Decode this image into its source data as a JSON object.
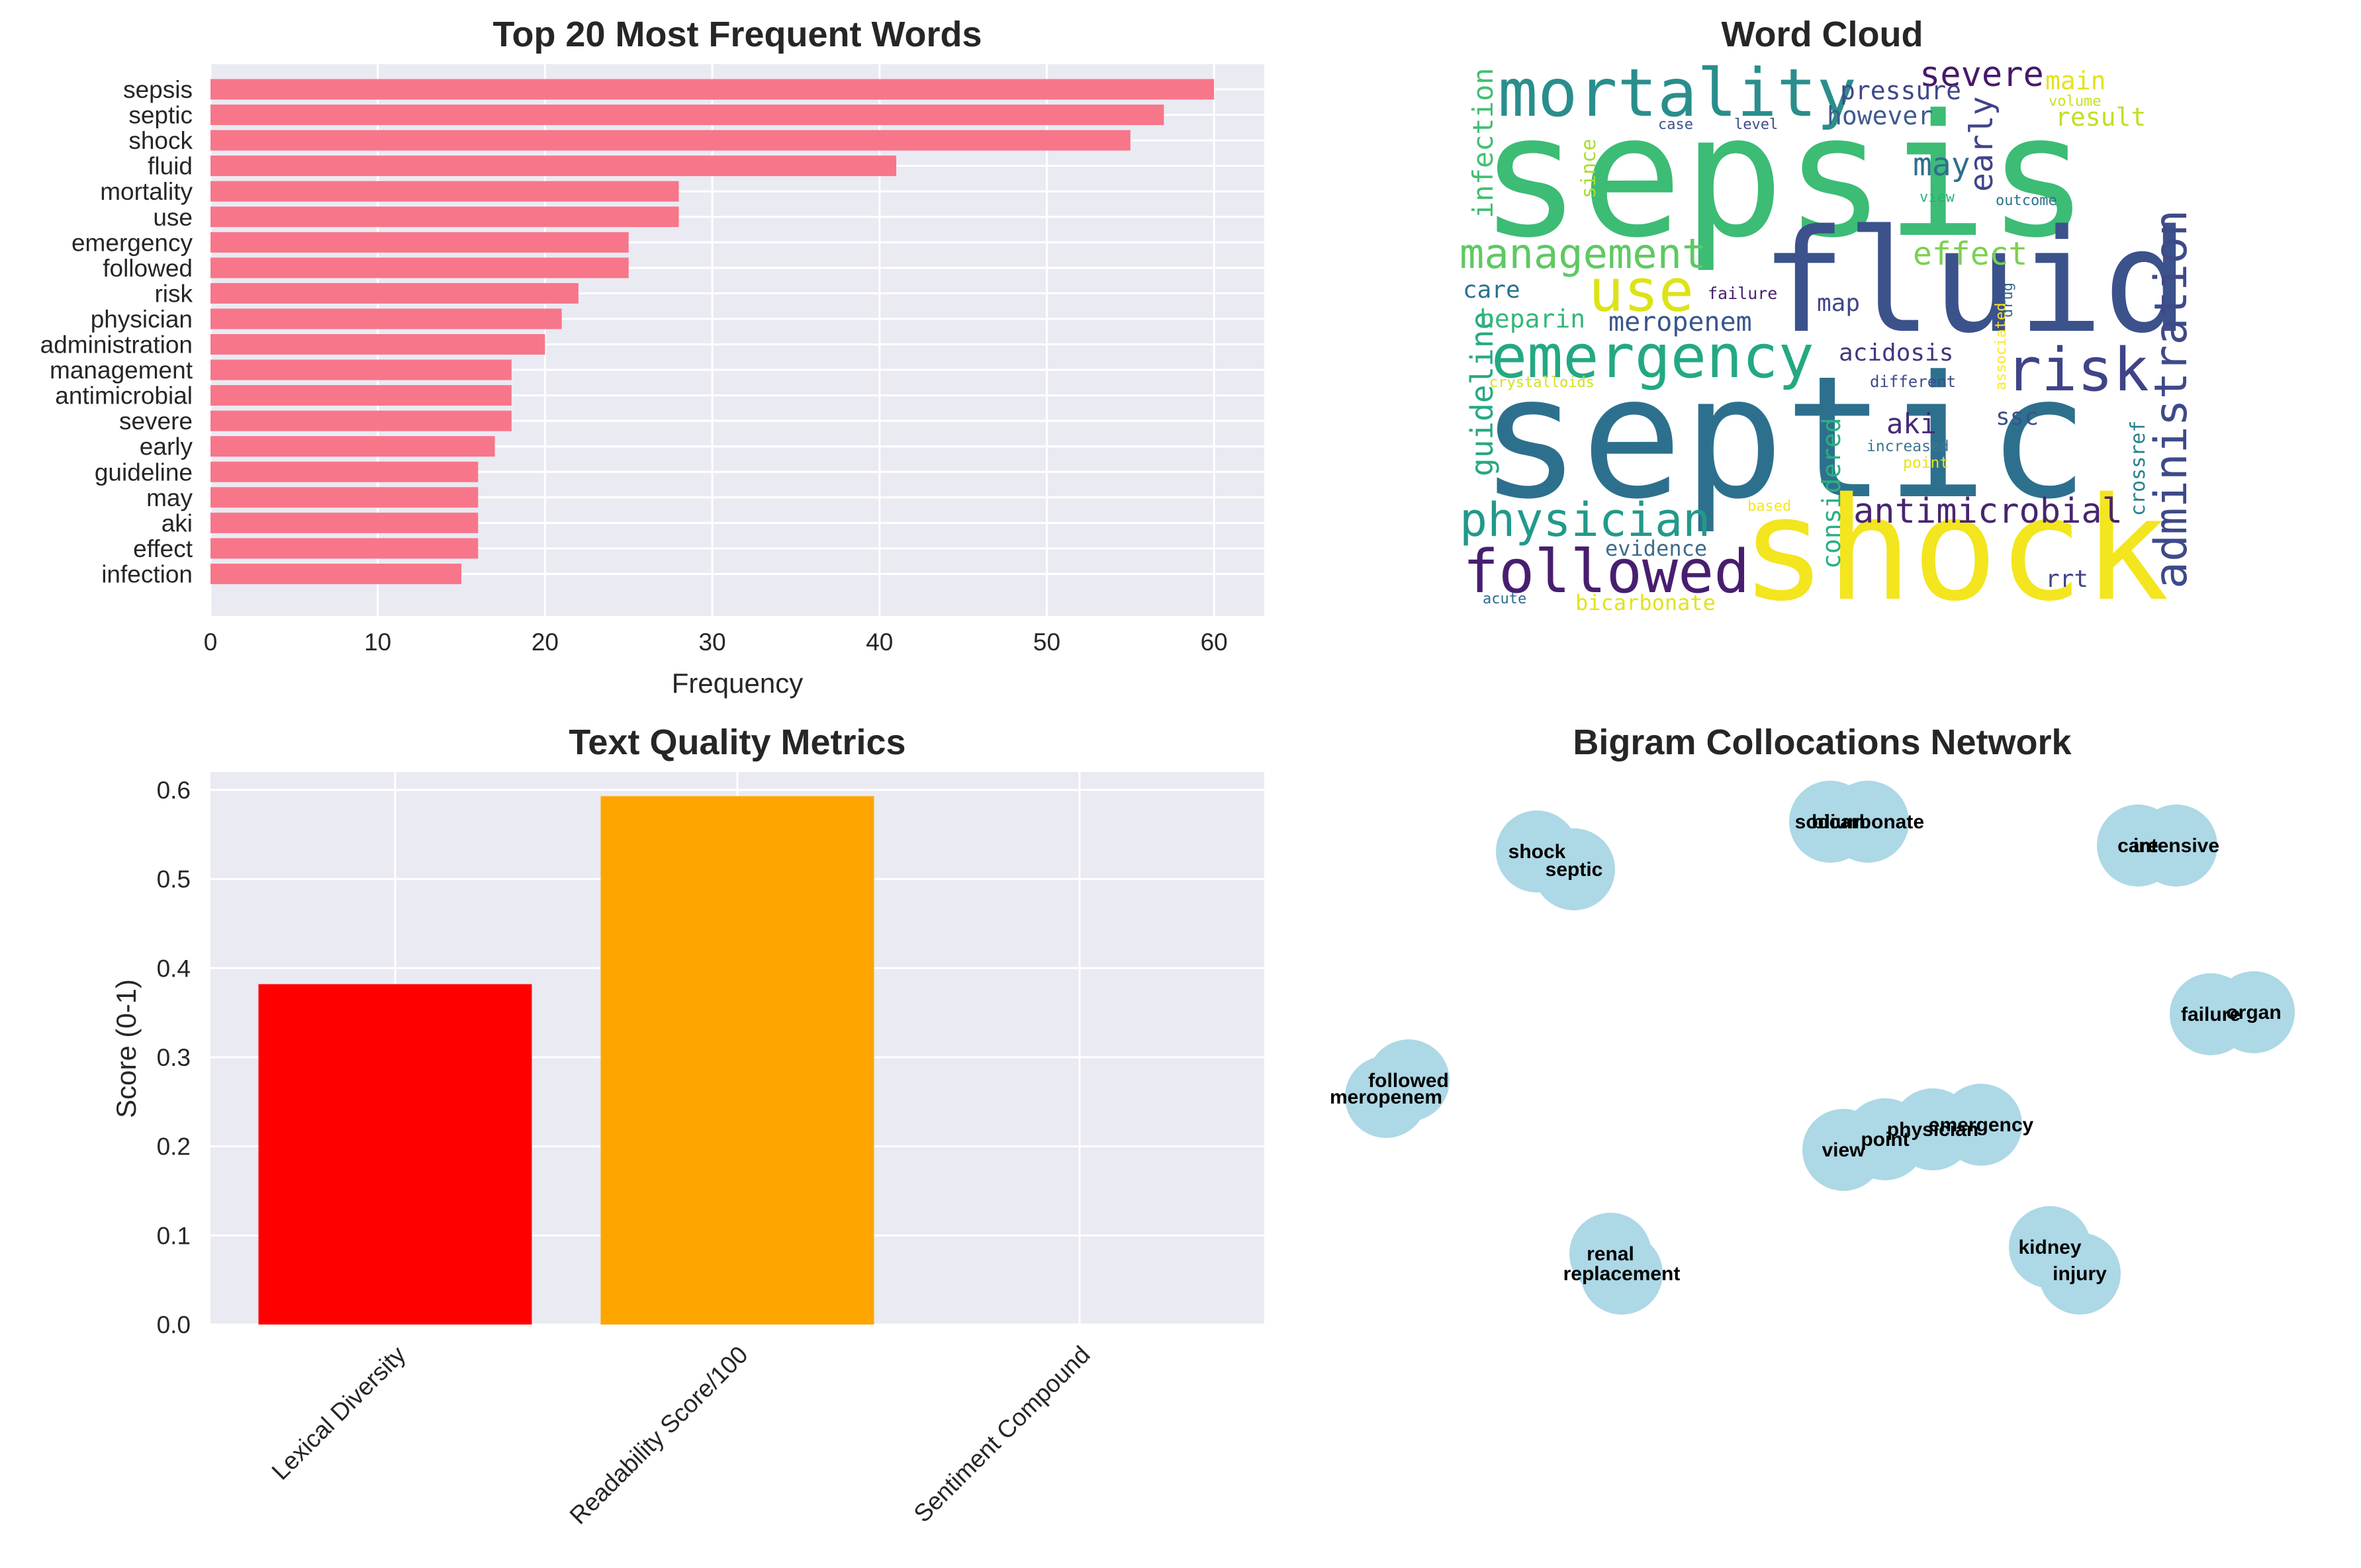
{
  "chart_data": [
    {
      "type": "bar",
      "orientation": "horizontal",
      "title": "Top 20 Most Frequent Words",
      "xlabel": "Frequency",
      "ylabel": "",
      "xlim": [
        0,
        63
      ],
      "xticks": [
        0,
        10,
        20,
        30,
        40,
        50,
        60
      ],
      "grid": true,
      "color": "#f7768a",
      "categories": [
        "sepsis",
        "septic",
        "shock",
        "fluid",
        "mortality",
        "use",
        "emergency",
        "followed",
        "risk",
        "physician",
        "administration",
        "management",
        "antimicrobial",
        "severe",
        "early",
        "guideline",
        "may",
        "aki",
        "effect",
        "infection"
      ],
      "values": [
        60,
        57,
        55,
        41,
        28,
        28,
        25,
        25,
        22,
        21,
        20,
        18,
        18,
        18,
        17,
        16,
        16,
        16,
        16,
        15
      ]
    },
    {
      "type": "wordcloud",
      "title": "Word Cloud",
      "words": [
        {
          "text": "sepsis",
          "color": "#3cbc75"
        },
        {
          "text": "septic",
          "color": "#2d708e"
        },
        {
          "text": "shock",
          "color": "#f3e51e"
        },
        {
          "text": "fluid",
          "color": "#3b528b"
        },
        {
          "text": "mortality",
          "color": "#2a8e8c"
        },
        {
          "text": "emergency",
          "color": "#24a884"
        },
        {
          "text": "followed",
          "color": "#481e6f"
        },
        {
          "text": "use",
          "color": "#dde318"
        },
        {
          "text": "risk",
          "color": "#404387"
        },
        {
          "text": "physician",
          "color": "#22998a"
        },
        {
          "text": "management",
          "color": "#5ec962"
        },
        {
          "text": "administration",
          "color": "#3e4a89"
        },
        {
          "text": "antimicrobial",
          "color": "#48256e"
        },
        {
          "text": "severe",
          "color": "#48186a"
        },
        {
          "text": "early",
          "color": "#414487"
        },
        {
          "text": "guideline",
          "color": "#26a883"
        },
        {
          "text": "infection",
          "color": "#43bf71"
        },
        {
          "text": "effect",
          "color": "#7ad151"
        },
        {
          "text": "may",
          "color": "#2e6f8e"
        },
        {
          "text": "meropenem",
          "color": "#39568c"
        },
        {
          "text": "heparin",
          "color": "#35b779"
        },
        {
          "text": "pressure",
          "color": "#3f4889"
        },
        {
          "text": "however",
          "color": "#3e5b8d"
        },
        {
          "text": "result",
          "color": "#c2df23"
        },
        {
          "text": "main",
          "color": "#e2e419"
        },
        {
          "text": "care",
          "color": "#2d718e"
        },
        {
          "text": "map",
          "color": "#3f4788"
        },
        {
          "text": "acidosis",
          "color": "#463480"
        },
        {
          "text": "aki",
          "color": "#482878"
        },
        {
          "text": "ssc",
          "color": "#3b518b"
        },
        {
          "text": "considered",
          "color": "#2ab07f"
        },
        {
          "text": "crossref",
          "color": "#26828e"
        },
        {
          "text": "since",
          "color": "#aadc32"
        },
        {
          "text": "evidence",
          "color": "#3e6b8e"
        },
        {
          "text": "bicarbonate",
          "color": "#e1e31a"
        },
        {
          "text": "rrt",
          "color": "#414487"
        },
        {
          "text": "crystalloids",
          "color": "#d0e11c"
        },
        {
          "text": "different",
          "color": "#3d4d8a"
        },
        {
          "text": "increased",
          "color": "#3e748e"
        },
        {
          "text": "point",
          "color": "#e5e419"
        },
        {
          "text": "failure",
          "color": "#482173"
        },
        {
          "text": "case",
          "color": "#3b528b"
        },
        {
          "text": "level",
          "color": "#3e4c8a"
        },
        {
          "text": "view",
          "color": "#2ab07f"
        },
        {
          "text": "outcome",
          "color": "#2c738e"
        },
        {
          "text": "volume",
          "color": "#cde11d"
        },
        {
          "text": "drug",
          "color": "#31668e"
        },
        {
          "text": "associated",
          "color": "#fde725"
        },
        {
          "text": "based",
          "color": "#f4e61e"
        },
        {
          "text": "acute",
          "color": "#2f6b8e"
        }
      ]
    },
    {
      "type": "bar",
      "title": "Text Quality Metrics",
      "xlabel": "",
      "ylabel": "Score (0-1)",
      "ylim": [
        0,
        0.62
      ],
      "yticks": [
        0.0,
        0.1,
        0.2,
        0.3,
        0.4,
        0.5,
        0.6
      ],
      "ytick_labels": [
        "0.0",
        "0.1",
        "0.2",
        "0.3",
        "0.4",
        "0.5",
        "0.6"
      ],
      "grid": true,
      "categories": [
        "Lexical Diversity",
        "Readability Score/100",
        "Sentiment Compound"
      ],
      "values": [
        0.382,
        0.593,
        0.0
      ],
      "colors": [
        "#ff0000",
        "#ffa500",
        "#008000"
      ]
    },
    {
      "type": "network",
      "title": "Bigram Collocations Network",
      "node_color": "#add8e6",
      "nodes": [
        "shock",
        "septic",
        "sodium",
        "bicarbonate",
        "care",
        "intensive",
        "failure",
        "organ",
        "followed",
        "meropenem",
        "view",
        "point",
        "physician",
        "emergency",
        "renal",
        "replacement",
        "kidney",
        "injury"
      ],
      "edges": [
        [
          "septic",
          "shock"
        ],
        [
          "sodium",
          "bicarbonate"
        ],
        [
          "intensive",
          "care"
        ],
        [
          "organ",
          "failure"
        ],
        [
          "followed",
          "meropenem"
        ],
        [
          "point",
          "view"
        ],
        [
          "emergency",
          "physician"
        ],
        [
          "renal",
          "replacement"
        ],
        [
          "kidney",
          "injury"
        ]
      ]
    }
  ]
}
